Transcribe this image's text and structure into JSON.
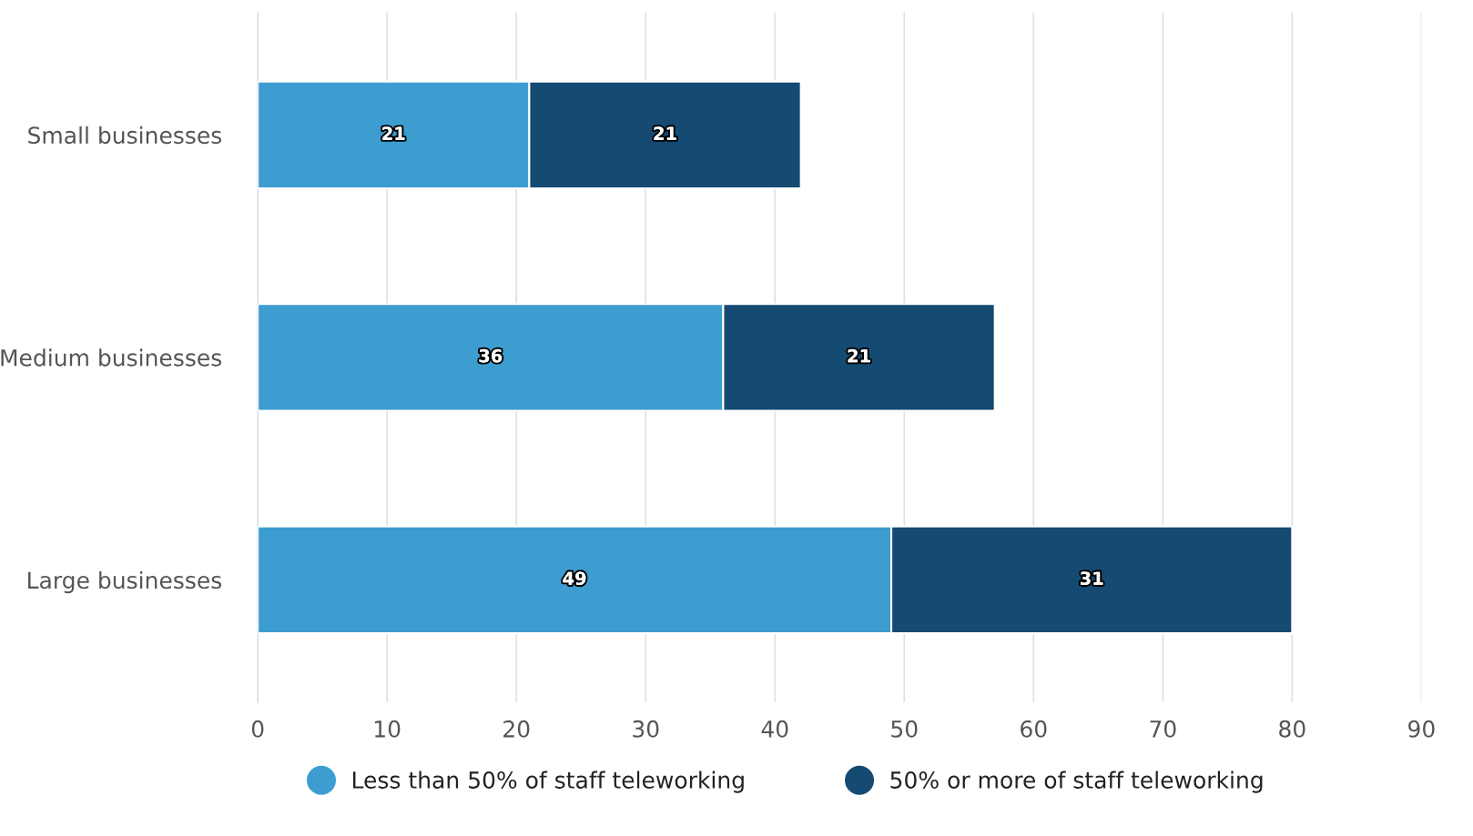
{
  "chart_data": {
    "type": "bar",
    "orientation": "horizontal",
    "stacked": true,
    "categories": [
      "Small businesses",
      "Medium businesses",
      "Large businesses"
    ],
    "series": [
      {
        "name": "Less than 50% of staff teleworking",
        "color": "#3d9dd1",
        "values": [
          21,
          36,
          49
        ]
      },
      {
        "name": "50% or more of staff teleworking",
        "color": "#154a72",
        "values": [
          21,
          21,
          31
        ]
      }
    ],
    "xlim": [
      0,
      90
    ],
    "xticks": [
      0,
      10,
      20,
      30,
      40,
      50,
      60,
      70,
      80,
      90
    ],
    "grid": "x",
    "legend": "bottom",
    "data_labels": true
  }
}
